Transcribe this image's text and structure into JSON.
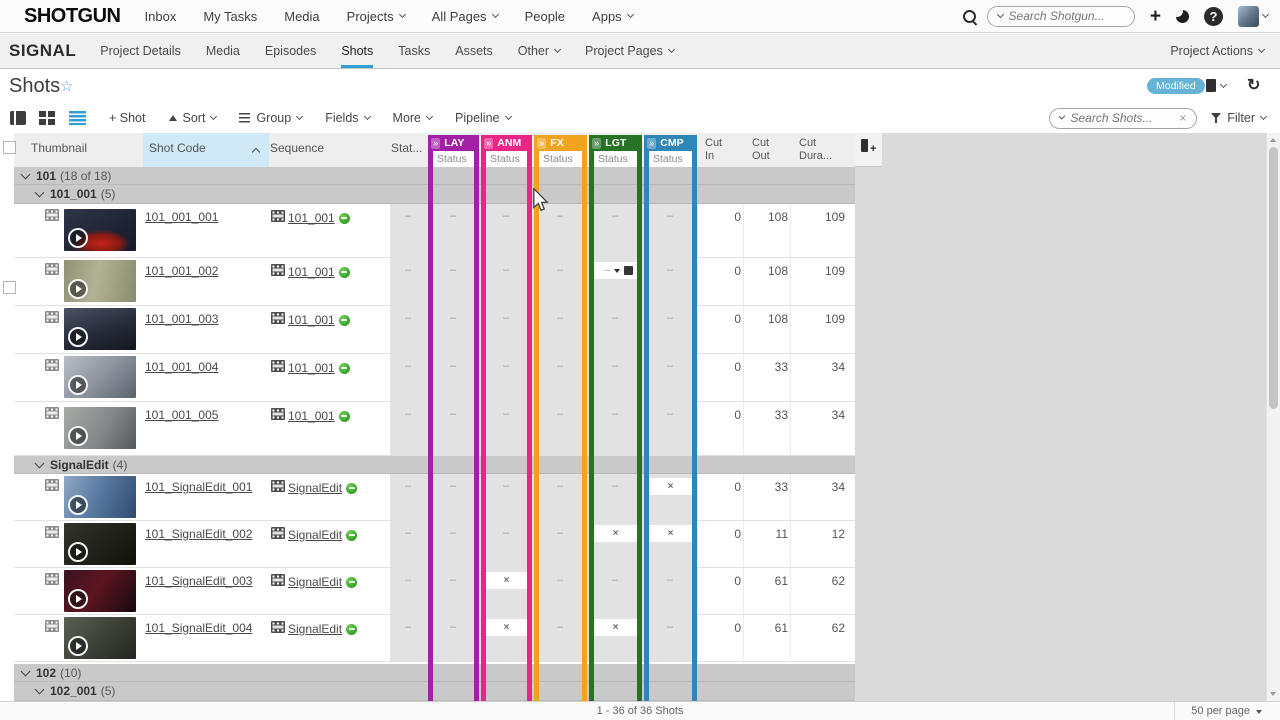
{
  "topbar": {
    "logo": "SHOTGUN",
    "items": [
      {
        "label": "Inbox",
        "caret": false
      },
      {
        "label": "My Tasks",
        "caret": false
      },
      {
        "label": "Media",
        "caret": false
      },
      {
        "label": "Projects",
        "caret": true
      },
      {
        "label": "All Pages",
        "caret": true
      },
      {
        "label": "People",
        "caret": false
      },
      {
        "label": "Apps",
        "caret": true
      }
    ],
    "search_placeholder": "Search Shotgun..."
  },
  "projectbar": {
    "project": "SIGNAL",
    "items": [
      {
        "label": "Project Details",
        "caret": false,
        "active": false
      },
      {
        "label": "Media",
        "caret": false,
        "active": false
      },
      {
        "label": "Episodes",
        "caret": false,
        "active": false
      },
      {
        "label": "Shots",
        "caret": false,
        "active": true
      },
      {
        "label": "Tasks",
        "caret": false,
        "active": false
      },
      {
        "label": "Assets",
        "caret": false,
        "active": false
      },
      {
        "label": "Other",
        "caret": true,
        "active": false
      },
      {
        "label": "Project Pages",
        "caret": true,
        "active": false
      }
    ],
    "actions_label": "Project Actions"
  },
  "page_header": {
    "title": "Shots",
    "badge": "Modified"
  },
  "toolbar": {
    "new_shot": "+ Shot",
    "sort": "Sort",
    "group": "Group",
    "fields": "Fields",
    "more": "More",
    "pipeline": "Pipeline",
    "search_placeholder": "Search Shots...",
    "filter": "Filter"
  },
  "table": {
    "columns": {
      "thumbnail": "Thumbnail",
      "shot_code": "Shot Code",
      "sequence": "Sequence",
      "status": "Stat...",
      "cut_in": "Cut\nIn",
      "cut_out": "Cut\nOut",
      "cut_duration": "Cut\nDura...",
      "status_sub": "Status",
      "expand_glyph": "»"
    },
    "pipeline_steps": [
      {
        "code": "LAY",
        "color": "#a21fa6"
      },
      {
        "code": "ANM",
        "color": "#ea2588"
      },
      {
        "code": "FX",
        "color": "#f0a31c"
      },
      {
        "code": "LGT",
        "color": "#277227"
      },
      {
        "code": "CMP",
        "color": "#2e87b5"
      }
    ],
    "display": [
      {
        "type": "group",
        "label": "101",
        "count": "(18 of 18)",
        "indent": 0
      },
      {
        "type": "group",
        "label": "101_001",
        "count": "(5)",
        "indent": 1
      },
      {
        "type": "shot",
        "code": "101_001_001",
        "sequence": "101_001",
        "statuses": [
          "-",
          "-",
          "-",
          "-",
          "-",
          "-"
        ],
        "cut_in": "0",
        "cut_out": "108",
        "cut_duration": "109",
        "thumb": "t1"
      },
      {
        "type": "shot",
        "code": "101_001_002",
        "sequence": "101_001",
        "statuses": [
          "-",
          "-",
          "-",
          "-",
          "menu",
          "-"
        ],
        "cut_in": "0",
        "cut_out": "108",
        "cut_duration": "109",
        "thumb": "t2"
      },
      {
        "type": "shot",
        "code": "101_001_003",
        "sequence": "101_001",
        "statuses": [
          "-",
          "-",
          "-",
          "-",
          "-",
          "-"
        ],
        "cut_in": "0",
        "cut_out": "108",
        "cut_duration": "109",
        "thumb": "t3"
      },
      {
        "type": "shot",
        "code": "101_001_004",
        "sequence": "101_001",
        "statuses": [
          "-",
          "-",
          "-",
          "-",
          "-",
          "-"
        ],
        "cut_in": "0",
        "cut_out": "33",
        "cut_duration": "34",
        "thumb": "t4"
      },
      {
        "type": "shot",
        "code": "101_001_005",
        "sequence": "101_001",
        "statuses": [
          "-",
          "-",
          "-",
          "-",
          "-",
          "-"
        ],
        "cut_in": "0",
        "cut_out": "33",
        "cut_duration": "34",
        "thumb": "t5"
      },
      {
        "type": "group",
        "label": "SignalEdit",
        "count": "(4)",
        "indent": 1
      },
      {
        "type": "shot",
        "code": "101_SignalEdit_001",
        "sequence": "SignalEdit",
        "statuses": [
          "-",
          "-",
          "-",
          "-",
          "-",
          "x"
        ],
        "cut_in": "0",
        "cut_out": "33",
        "cut_duration": "34",
        "thumb": "t6"
      },
      {
        "type": "shot",
        "code": "101_SignalEdit_002",
        "sequence": "SignalEdit",
        "statuses": [
          "-",
          "-",
          "-",
          "-",
          "x",
          "x"
        ],
        "cut_in": "0",
        "cut_out": "11",
        "cut_duration": "12",
        "thumb": "t7"
      },
      {
        "type": "shot",
        "code": "101_SignalEdit_003",
        "sequence": "SignalEdit",
        "statuses": [
          "-",
          "-",
          "x",
          "-",
          "-",
          "-"
        ],
        "cut_in": "0",
        "cut_out": "61",
        "cut_duration": "62",
        "thumb": "t8"
      },
      {
        "type": "shot",
        "code": "101_SignalEdit_004",
        "sequence": "SignalEdit",
        "statuses": [
          "-",
          "-",
          "x",
          "-",
          "x",
          "-"
        ],
        "cut_in": "0",
        "cut_out": "61",
        "cut_duration": "62",
        "thumb": "t9"
      },
      {
        "type": "gap"
      },
      {
        "type": "group",
        "label": "102",
        "count": "(10)",
        "indent": 0
      },
      {
        "type": "group",
        "label": "102_001",
        "count": "(5)",
        "indent": 1
      }
    ]
  },
  "footer": {
    "range": "1 - 36 of 36 Shots",
    "per_page": "50 per page"
  }
}
